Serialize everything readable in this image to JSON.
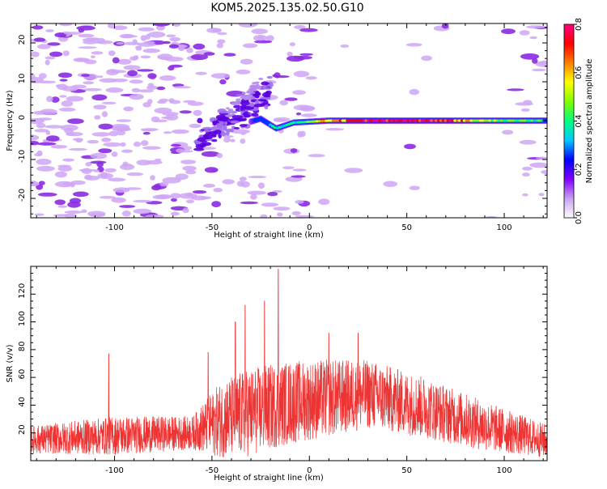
{
  "title": "KOM5.2025.135.02.50.G10",
  "chart_data": [
    {
      "type": "heatmap",
      "xlabel": "Height of straight line (km)",
      "ylabel": "Frequency (Hz)",
      "xlim": [
        -143,
        122
      ],
      "ylim": [
        -25,
        25
      ],
      "xticks": [
        -100,
        -50,
        0,
        50,
        100
      ],
      "yticks": [
        -20,
        -10,
        0,
        10,
        20
      ],
      "grid": false,
      "colorbar": {
        "label": "Normalized spectral amplitude",
        "range": [
          0,
          0.8
        ],
        "ticks": [
          0.0,
          0.2,
          0.4,
          0.6,
          0.8
        ],
        "colors": [
          "#ffffff",
          "#c8a0f0",
          "#8000ff",
          "#0000ff",
          "#00c8ff",
          "#00ff80",
          "#80ff00",
          "#ffff00",
          "#ff8000",
          "#ff0000",
          "#ff0080"
        ]
      },
      "ridge": {
        "description_points": [
          {
            "x": -55,
            "y": -2,
            "value": 0.15
          },
          {
            "x": -45,
            "y": 2,
            "value": 0.2
          },
          {
            "x": -35,
            "y": -1,
            "value": 0.18
          },
          {
            "x": -25,
            "y": 0.5,
            "value": 0.3
          },
          {
            "x": -17,
            "y": -2,
            "value": 0.35
          },
          {
            "x": -8,
            "y": -0.5,
            "value": 0.4
          },
          {
            "x": 10,
            "y": 0,
            "value": 0.6
          },
          {
            "x": 30,
            "y": 0,
            "value": 0.75
          },
          {
            "x": 50,
            "y": 0,
            "value": 0.78
          },
          {
            "x": 70,
            "y": 0,
            "value": 0.72
          },
          {
            "x": 90,
            "y": 0,
            "value": 0.5
          },
          {
            "x": 110,
            "y": 0,
            "value": 0.4
          }
        ]
      }
    },
    {
      "type": "line",
      "xlabel": "Height of straight line (km)",
      "ylabel": "SNR (v/v)",
      "xlim": [
        -143,
        122
      ],
      "ylim": [
        0,
        140
      ],
      "xticks": [
        -100,
        -50,
        0,
        50,
        100
      ],
      "yticks": [
        20,
        40,
        60,
        80,
        100,
        120
      ],
      "color": "#ee3333",
      "envelope": [
        {
          "x": -143,
          "mean": 15,
          "spread": 10
        },
        {
          "x": -100,
          "mean": 18,
          "spread": 14
        },
        {
          "x": -60,
          "mean": 20,
          "spread": 12
        },
        {
          "x": -45,
          "mean": 30,
          "spread": 28
        },
        {
          "x": -30,
          "mean": 35,
          "spread": 32
        },
        {
          "x": -10,
          "mean": 42,
          "spread": 30
        },
        {
          "x": 10,
          "mean": 45,
          "spread": 28
        },
        {
          "x": 30,
          "mean": 48,
          "spread": 25
        },
        {
          "x": 60,
          "mean": 38,
          "spread": 22
        },
        {
          "x": 90,
          "mean": 25,
          "spread": 18
        },
        {
          "x": 122,
          "mean": 14,
          "spread": 12
        }
      ],
      "peaks": [
        {
          "x": -16,
          "y": 138
        },
        {
          "x": -33,
          "y": 112
        },
        {
          "x": -23,
          "y": 115
        },
        {
          "x": -38,
          "y": 100
        },
        {
          "x": 10,
          "y": 92
        },
        {
          "x": 25,
          "y": 92
        },
        {
          "x": -52,
          "y": 78
        },
        {
          "x": -103,
          "y": 77
        }
      ]
    }
  ]
}
